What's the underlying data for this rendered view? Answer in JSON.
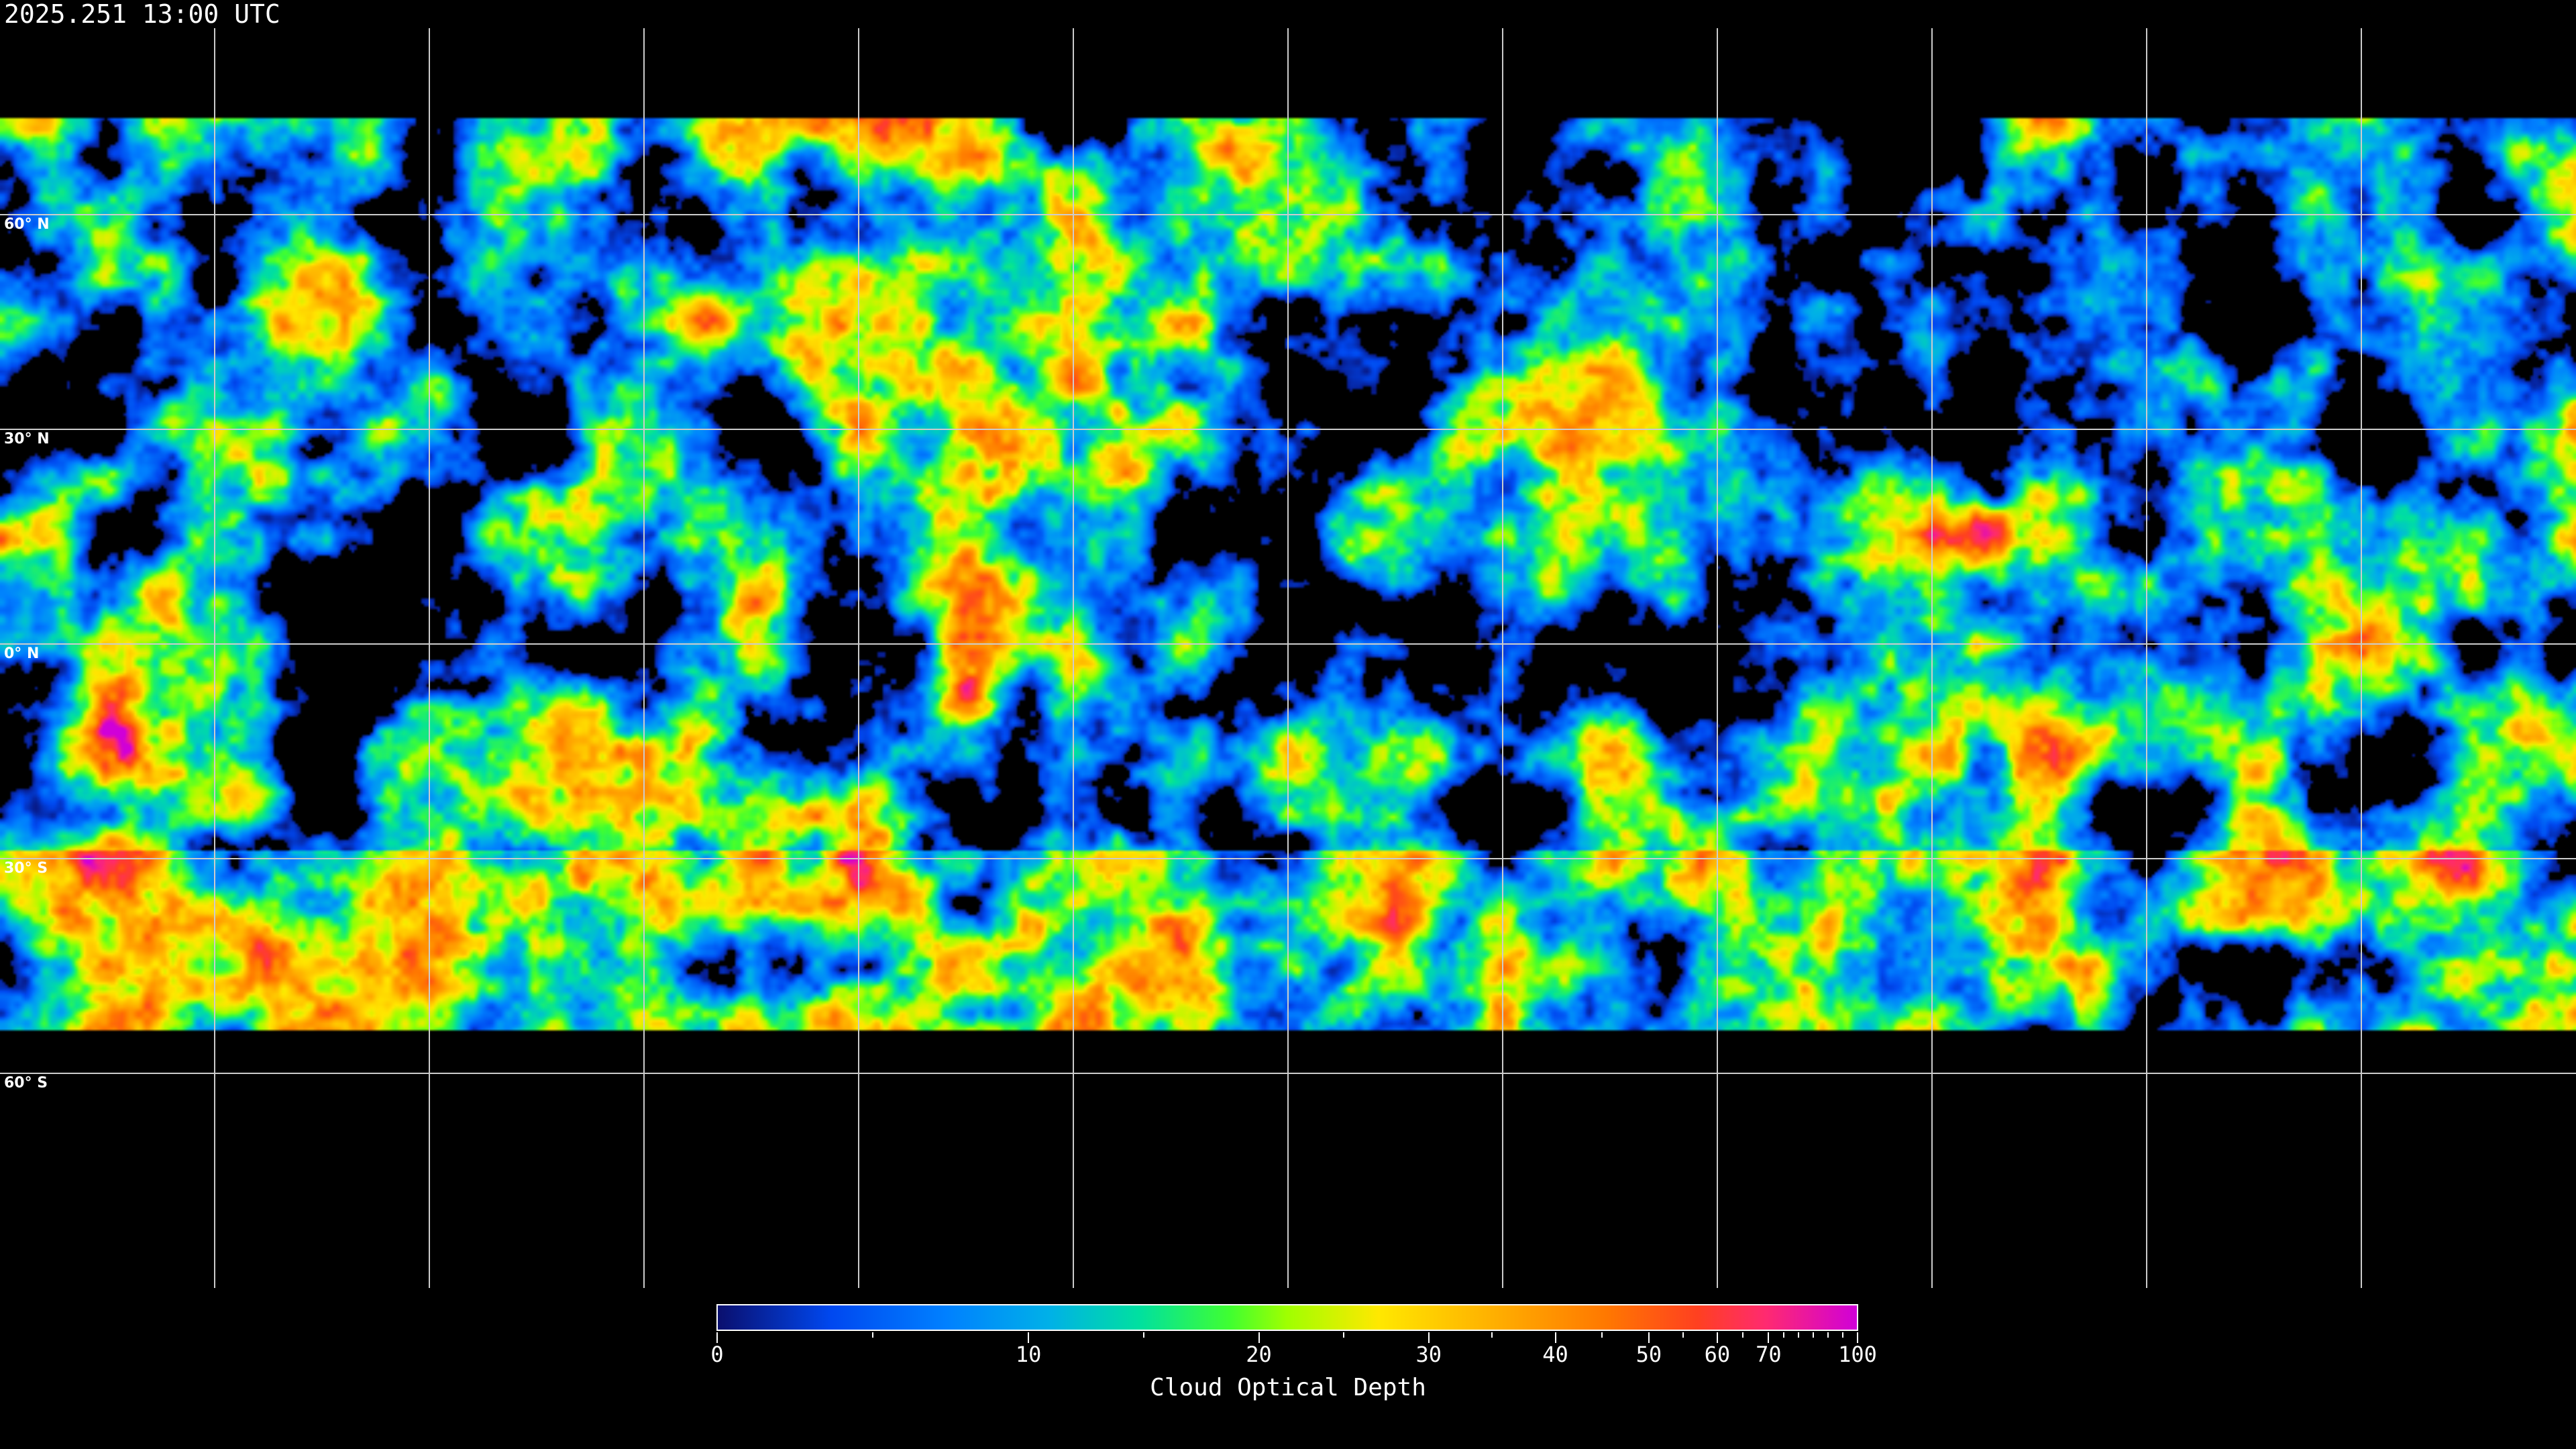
{
  "title": "2025.251 13:00 UTC",
  "latitude_labels": [
    "60° N",
    "30° N",
    "0° N",
    "30° S",
    "60° S"
  ],
  "colorbar": {
    "label": "Cloud Optical Depth",
    "ticks": [
      "0",
      "10",
      "20",
      "30",
      "40",
      "50",
      "60",
      "70",
      "100"
    ],
    "colors": [
      "#0a0f6e",
      "#0048f0",
      "#00b0e8",
      "#40ff30",
      "#ffe800",
      "#ffb000",
      "#ff7800",
      "#ff4020",
      "#d000d8"
    ]
  },
  "projection": "equirectangular",
  "grid_spacing_degrees": 30
}
